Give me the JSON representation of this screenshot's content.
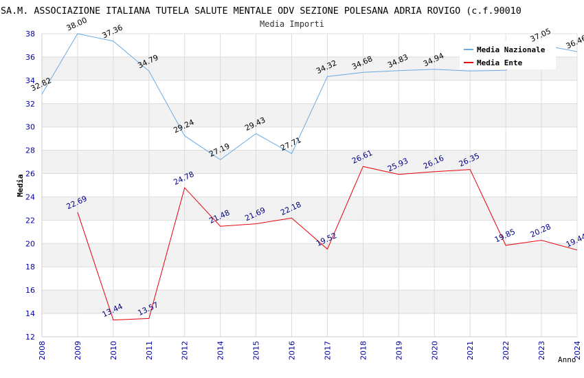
{
  "chart_data": {
    "type": "line",
    "title": "SA.M. ASSOCIAZIONE ITALIANA TUTELA SALUTE MENTALE ODV SEZIONE POLESANA ADRIA ROVIGO (c.f.90010",
    "subtitle": "Media Importi",
    "xlabel": "Anno",
    "ylabel": "Media",
    "ylim": [
      12,
      38
    ],
    "yticks": [
      "12",
      "14",
      "16",
      "18",
      "20",
      "22",
      "24",
      "26",
      "28",
      "30",
      "32",
      "34",
      "36",
      "38"
    ],
    "categories": [
      "2008",
      "2009",
      "2010",
      "2011",
      "2012",
      "2014",
      "2015",
      "2016",
      "2017",
      "2018",
      "2019",
      "2020",
      "2021",
      "2022",
      "2023",
      "2024"
    ],
    "series": [
      {
        "name": "Media Nazionale",
        "color": "#6aaae4",
        "label_color": "#000000",
        "values": [
          32.82,
          38.0,
          37.36,
          34.79,
          29.24,
          27.19,
          29.43,
          27.71,
          34.32,
          34.68,
          34.83,
          34.94,
          34.8,
          34.86,
          37.05,
          36.46
        ],
        "labels": [
          "32.82",
          "38.00",
          "37.36",
          "34.79",
          "29.24",
          "27.19",
          "29.43",
          "27.71",
          "34.32",
          "34.68",
          "34.83",
          "34.94",
          "",
          "",
          "37.05",
          "36.46"
        ]
      },
      {
        "name": "Media Ente",
        "color": "#e8000a",
        "label_color": "#00007f",
        "values": [
          null,
          22.69,
          13.44,
          13.57,
          24.78,
          21.48,
          21.69,
          22.18,
          19.52,
          26.61,
          25.93,
          26.16,
          26.35,
          19.85,
          20.28,
          19.44
        ],
        "labels": [
          "",
          "22.69",
          "13.44",
          "13.57",
          "24.78",
          "21.48",
          "21.69",
          "22.18",
          "19.52",
          "26.61",
          "25.93",
          "26.16",
          "26.35",
          "19.85",
          "20.28",
          "19.44"
        ]
      }
    ],
    "legend": {
      "position": "top-right"
    },
    "grid": true,
    "colors": {
      "band": "#f2f2f2",
      "gridline": "#dcdcdc",
      "axis_tick_text": "#0000aa",
      "title_text": "#000000",
      "subtitle_text": "#333333"
    }
  }
}
